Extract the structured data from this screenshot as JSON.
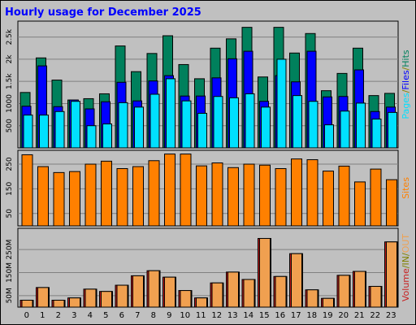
{
  "title": "Hourly usage for December 2025",
  "colors": {
    "hits": "#00805c",
    "files": "#0000ff",
    "pages": "#00e0ff",
    "sites": "#ff8000",
    "kin": "#c81e1e",
    "kout": "#f0a050",
    "legend_slash": "#808000"
  },
  "chart_data": [
    {
      "type": "bar",
      "name": "hits-files-pages",
      "categories": [
        "0",
        "1",
        "2",
        "3",
        "4",
        "5",
        "6",
        "7",
        "8",
        "9",
        "10",
        "11",
        "12",
        "13",
        "14",
        "15",
        "16",
        "17",
        "18",
        "19",
        "20",
        "21",
        "22",
        "23"
      ],
      "ylim": [
        0,
        2860
      ],
      "yticks": [
        500,
        1000,
        1500,
        2000,
        2500
      ],
      "ytick_labels": [
        "500",
        "1000",
        "1.5k",
        "2k",
        "2.5k"
      ],
      "series": [
        {
          "name": "Hits",
          "values": [
            1250,
            2030,
            1530,
            1080,
            1110,
            1220,
            2300,
            1720,
            2130,
            2530,
            1880,
            1560,
            2250,
            2460,
            2720,
            1600,
            2720,
            2140,
            2580,
            1290,
            1680,
            2250,
            1180,
            1230
          ]
        },
        {
          "name": "Files",
          "values": [
            940,
            1850,
            930,
            1080,
            880,
            1040,
            1480,
            1060,
            1510,
            1630,
            1170,
            1170,
            1580,
            2010,
            2180,
            1050,
            1630,
            1490,
            2180,
            1150,
            1160,
            1760,
            820,
            920
          ]
        },
        {
          "name": "Pages",
          "values": [
            740,
            740,
            820,
            1050,
            500,
            540,
            1020,
            920,
            1210,
            1560,
            1060,
            780,
            1160,
            1130,
            1220,
            920,
            2000,
            1180,
            1050,
            520,
            830,
            1010,
            650,
            800
          ]
        }
      ],
      "legend": [
        "Pages",
        "Files",
        "Hits"
      ]
    },
    {
      "type": "bar",
      "name": "sites",
      "categories": [
        "0",
        "1",
        "2",
        "3",
        "4",
        "5",
        "6",
        "7",
        "8",
        "9",
        "10",
        "11",
        "12",
        "13",
        "14",
        "15",
        "16",
        "17",
        "18",
        "19",
        "20",
        "21",
        "22",
        "23"
      ],
      "ylim": [
        0,
        306
      ],
      "yticks": [
        50,
        150,
        250
      ],
      "ytick_labels": [
        "50",
        "150",
        "250"
      ],
      "series": [
        {
          "name": "Sites",
          "values": [
            288,
            240,
            216,
            220,
            250,
            262,
            232,
            240,
            264,
            291,
            291,
            243,
            255,
            236,
            250,
            246,
            232,
            271,
            268,
            222,
            242,
            178,
            230,
            187
          ]
        }
      ],
      "legend": [
        "Sites"
      ]
    },
    {
      "type": "bar",
      "name": "volume",
      "categories": [
        "0",
        "1",
        "2",
        "3",
        "4",
        "5",
        "6",
        "7",
        "8",
        "9",
        "10",
        "11",
        "12",
        "13",
        "14",
        "15",
        "16",
        "17",
        "18",
        "19",
        "20",
        "21",
        "22",
        "23"
      ],
      "ylim": [
        0,
        342
      ],
      "yticks": [
        50,
        150,
        250
      ],
      "ytick_labels": [
        "50M",
        "150M",
        "250M"
      ],
      "series": [
        {
          "name": "Volume",
          "values": [
            30,
            85,
            30,
            40,
            78,
            68,
            95,
            136,
            158,
            130,
            72,
            40,
            105,
            152,
            120,
            298,
            133,
            232,
            75,
            38,
            138,
            155,
            90,
            283
          ]
        },
        {
          "name": "IN",
          "values": [
            0,
            0,
            0,
            0,
            0,
            0,
            0,
            0,
            0,
            0,
            0,
            0,
            0,
            0,
            0,
            0,
            0,
            0,
            0,
            0,
            0,
            0,
            0,
            0
          ]
        },
        {
          "name": "OUT",
          "values": [
            30,
            85,
            30,
            40,
            78,
            68,
            95,
            136,
            158,
            130,
            72,
            40,
            105,
            152,
            120,
            298,
            133,
            232,
            75,
            38,
            138,
            155,
            90,
            283
          ]
        }
      ],
      "legend": [
        "Volume",
        "IN",
        "OUT"
      ]
    }
  ]
}
